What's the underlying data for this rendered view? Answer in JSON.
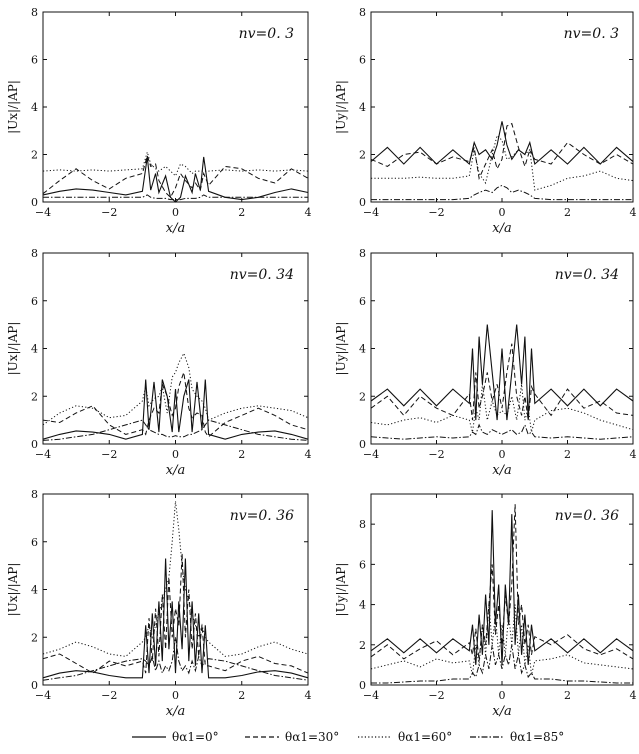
{
  "figure": {
    "legend": {
      "placement": "bottom-center",
      "items": [
        {
          "label": "θα1=0°",
          "dash": "solid"
        },
        {
          "label": "θα1=30°",
          "dash": "dashed"
        },
        {
          "label": "θα1=60°",
          "dash": "dotted"
        },
        {
          "label": "θα1=85°",
          "dash": "dashdot"
        }
      ]
    }
  },
  "chart_data": [
    {
      "type": "line",
      "panel": "a",
      "annotation": "nv=0. 3",
      "xlabel": "x/a",
      "ylabel": "|Ux|/|AP|",
      "xlim": [
        -4,
        4
      ],
      "ylim": [
        0,
        8
      ],
      "xticks": [
        "-4",
        "-2",
        "0",
        "2",
        "4"
      ],
      "yticks": [
        "0",
        "2",
        "4",
        "6",
        "8"
      ],
      "x": [
        -4,
        -3.5,
        -3,
        -2.5,
        -2,
        -1.5,
        -1,
        -0.85,
        -0.75,
        -0.6,
        -0.5,
        -0.3,
        -0.15,
        0,
        0.15,
        0.3,
        0.5,
        0.6,
        0.75,
        0.85,
        1,
        1.5,
        2,
        2.5,
        3,
        3.5,
        4
      ],
      "series": [
        {
          "label": "θα1=0°",
          "values": [
            0.3,
            0.45,
            0.55,
            0.5,
            0.4,
            0.3,
            0.45,
            1.9,
            0.5,
            1.2,
            0.4,
            1.1,
            0.2,
            0.0,
            0.2,
            1.1,
            0.4,
            1.2,
            0.5,
            1.9,
            0.45,
            0.2,
            0.1,
            0.2,
            0.4,
            0.55,
            0.4
          ]
        },
        {
          "label": "θα1=30°",
          "values": [
            0.35,
            0.9,
            1.4,
            0.9,
            0.55,
            1.0,
            1.2,
            1.95,
            1.5,
            1.6,
            0.9,
            0.4,
            0.2,
            0.6,
            1.2,
            0.9,
            0.6,
            0.8,
            0.5,
            1.2,
            0.7,
            1.5,
            1.4,
            1.0,
            0.8,
            1.4,
            1.0
          ]
        },
        {
          "label": "θα1=60°",
          "values": [
            1.3,
            1.35,
            1.3,
            1.35,
            1.3,
            1.35,
            1.4,
            2.1,
            1.6,
            1.4,
            1.3,
            1.5,
            1.3,
            1.1,
            1.6,
            1.5,
            1.2,
            1.3,
            1.3,
            1.3,
            1.3,
            1.35,
            1.3,
            1.35,
            1.3,
            1.35,
            1.3
          ]
        },
        {
          "label": "θα1=85°",
          "values": [
            0.2,
            0.2,
            0.2,
            0.2,
            0.2,
            0.2,
            0.2,
            0.3,
            0.2,
            0.15,
            0.15,
            0.15,
            0.1,
            0.1,
            0.1,
            0.15,
            0.15,
            0.15,
            0.2,
            0.3,
            0.2,
            0.2,
            0.2,
            0.2,
            0.2,
            0.2,
            0.2
          ]
        }
      ]
    },
    {
      "type": "line",
      "panel": "b",
      "annotation": "nv=0. 3",
      "xlabel": "x/a",
      "ylabel": "|Uy|/|AP|",
      "xlim": [
        -4,
        4
      ],
      "ylim": [
        0,
        8
      ],
      "xticks": [
        "-4",
        "-2",
        "0",
        "2",
        "4"
      ],
      "yticks": [
        "0",
        "2",
        "4",
        "6",
        "8"
      ],
      "x": [
        -4,
        -3.5,
        -3,
        -2.5,
        -2,
        -1.5,
        -1,
        -0.85,
        -0.7,
        -0.5,
        -0.3,
        -0.15,
        0,
        0.15,
        0.3,
        0.5,
        0.7,
        0.85,
        1,
        1.5,
        2,
        2.5,
        3,
        3.5,
        4
      ],
      "series": [
        {
          "label": "θα1=0°",
          "values": [
            1.7,
            2.3,
            1.6,
            2.3,
            1.6,
            2.2,
            1.6,
            2.5,
            2.0,
            2.2,
            1.8,
            2.4,
            3.4,
            2.4,
            1.8,
            2.2,
            2.0,
            2.5,
            1.6,
            2.2,
            1.6,
            2.3,
            1.6,
            2.3,
            1.7
          ]
        },
        {
          "label": "θα1=30°",
          "values": [
            1.8,
            1.5,
            2.0,
            2.1,
            1.6,
            1.9,
            1.7,
            2.3,
            1.0,
            1.6,
            2.2,
            1.4,
            1.8,
            3.2,
            3.3,
            2.3,
            1.5,
            2.2,
            1.8,
            1.6,
            2.5,
            2.0,
            1.6,
            2.0,
            1.6
          ]
        },
        {
          "label": "θα1=60°",
          "values": [
            1.0,
            1.0,
            1.0,
            1.05,
            1.0,
            1.0,
            1.1,
            2.2,
            1.2,
            0.8,
            2.0,
            2.8,
            2.6,
            1.8,
            1.9,
            2.2,
            2.0,
            2.2,
            0.5,
            0.7,
            1.0,
            1.1,
            1.3,
            1.0,
            0.9
          ]
        },
        {
          "label": "θα1=85°",
          "values": [
            0.1,
            0.1,
            0.1,
            0.1,
            0.1,
            0.1,
            0.15,
            0.3,
            0.4,
            0.5,
            0.4,
            0.6,
            0.7,
            0.6,
            0.4,
            0.5,
            0.4,
            0.3,
            0.15,
            0.1,
            0.1,
            0.1,
            0.1,
            0.1,
            0.1
          ]
        }
      ]
    },
    {
      "type": "line",
      "panel": "c",
      "annotation": "nv=0. 34",
      "xlabel": "x/a",
      "ylabel": "|Ux|/|AP|",
      "xlim": [
        -4,
        4
      ],
      "ylim": [
        0,
        8
      ],
      "xticks": [
        "-4",
        "-2",
        "0",
        "2",
        "4"
      ],
      "yticks": [
        "0",
        "2",
        "4",
        "6",
        "8"
      ],
      "x": [
        -4,
        -3.5,
        -3,
        -2.5,
        -2,
        -1.5,
        -1,
        -0.9,
        -0.8,
        -0.65,
        -0.5,
        -0.4,
        -0.25,
        -0.1,
        0,
        0.1,
        0.25,
        0.4,
        0.5,
        0.65,
        0.8,
        0.9,
        1,
        1.5,
        2,
        2.5,
        3,
        3.5,
        4
      ],
      "series": [
        {
          "label": "θα1=0°",
          "values": [
            0.2,
            0.4,
            0.55,
            0.5,
            0.4,
            0.2,
            0.4,
            2.7,
            0.6,
            2.6,
            0.5,
            2.7,
            2.0,
            0.5,
            2.3,
            0.5,
            2.0,
            2.7,
            0.5,
            2.6,
            0.6,
            2.7,
            0.4,
            0.2,
            0.4,
            0.5,
            0.55,
            0.4,
            0.2
          ]
        },
        {
          "label": "θα1=30°",
          "values": [
            1.0,
            0.9,
            1.3,
            1.6,
            0.8,
            0.4,
            0.6,
            0.4,
            1.0,
            1.5,
            1.3,
            2.5,
            2.0,
            1.2,
            1.5,
            2.4,
            3.0,
            1.5,
            1.1,
            1.3,
            1.2,
            0.5,
            0.3,
            0.9,
            1.2,
            1.5,
            1.2,
            0.8,
            0.6
          ]
        },
        {
          "label": "θα1=60°",
          "values": [
            0.8,
            1.3,
            1.6,
            1.5,
            1.1,
            1.2,
            1.8,
            2.4,
            1.6,
            1.9,
            2.0,
            2.4,
            1.3,
            2.8,
            3.0,
            3.4,
            3.8,
            3.2,
            2.3,
            2.0,
            1.8,
            1.5,
            1.0,
            1.3,
            1.5,
            1.6,
            1.5,
            1.4,
            1.1
          ]
        },
        {
          "label": "θα1=85°",
          "values": [
            0.15,
            0.2,
            0.3,
            0.4,
            0.6,
            0.8,
            1.0,
            0.8,
            0.6,
            0.5,
            0.4,
            0.4,
            0.3,
            0.3,
            0.35,
            0.3,
            0.3,
            0.4,
            0.4,
            0.5,
            0.6,
            0.8,
            1.0,
            0.8,
            0.6,
            0.4,
            0.3,
            0.2,
            0.15
          ]
        }
      ]
    },
    {
      "type": "line",
      "panel": "d",
      "annotation": "nv=0. 34",
      "xlabel": "x/a",
      "ylabel": "|Uy|/|AP|",
      "xlim": [
        -4,
        4
      ],
      "ylim": [
        0,
        8
      ],
      "xticks": [
        "-4",
        "-2",
        "0",
        "2",
        "4"
      ],
      "yticks": [
        "0",
        "2",
        "4",
        "6",
        "8"
      ],
      "x": [
        -4,
        -3.5,
        -3,
        -2.5,
        -2,
        -1.5,
        -1,
        -0.9,
        -0.8,
        -0.7,
        -0.6,
        -0.45,
        -0.3,
        -0.15,
        0,
        0.15,
        0.3,
        0.45,
        0.6,
        0.7,
        0.8,
        0.9,
        1,
        1.5,
        2,
        2.5,
        3,
        3.5,
        4
      ],
      "series": [
        {
          "label": "θα1=0°",
          "values": [
            1.8,
            2.3,
            1.6,
            2.3,
            1.6,
            2.3,
            1.7,
            4.0,
            1.0,
            4.5,
            2.5,
            5.0,
            3.0,
            1.0,
            4.0,
            1.0,
            3.0,
            5.0,
            2.5,
            4.5,
            1.0,
            4.0,
            1.7,
            2.3,
            1.6,
            2.3,
            1.6,
            2.3,
            1.8
          ]
        },
        {
          "label": "θα1=30°",
          "values": [
            1.5,
            2.0,
            1.2,
            2.0,
            1.5,
            1.2,
            2.1,
            1.0,
            3.0,
            1.5,
            2.0,
            3.0,
            1.8,
            2.5,
            1.5,
            3.0,
            4.2,
            2.0,
            1.2,
            2.0,
            1.0,
            2.4,
            2.1,
            1.2,
            2.3,
            1.5,
            1.8,
            1.3,
            1.2
          ]
        },
        {
          "label": "θα1=60°",
          "values": [
            0.9,
            0.8,
            1.0,
            1.1,
            0.9,
            1.2,
            1.0,
            0.5,
            1.5,
            1.0,
            2.5,
            1.0,
            1.8,
            1.2,
            1.4,
            1.2,
            2.0,
            1.0,
            2.5,
            1.0,
            1.5,
            0.5,
            1.0,
            1.4,
            1.5,
            1.3,
            1.0,
            0.8,
            0.6
          ]
        },
        {
          "label": "θα1=85°",
          "values": [
            0.3,
            0.25,
            0.2,
            0.25,
            0.3,
            0.25,
            0.3,
            0.5,
            0.4,
            0.8,
            0.5,
            0.4,
            0.6,
            0.5,
            0.4,
            0.5,
            0.6,
            0.4,
            0.5,
            0.8,
            0.4,
            0.5,
            0.3,
            0.25,
            0.3,
            0.25,
            0.2,
            0.25,
            0.3
          ]
        }
      ]
    },
    {
      "type": "line",
      "panel": "e",
      "annotation": "nv=0. 36",
      "xlabel": "x/a",
      "ylabel": "|Ux|/|AP|",
      "xlim": [
        -4,
        4
      ],
      "ylim": [
        0,
        8
      ],
      "xticks": [
        "-4",
        "-2",
        "0",
        "2",
        "4"
      ],
      "yticks": [
        "0",
        "2",
        "4",
        "6",
        "8"
      ],
      "x": [
        -4,
        -3.5,
        -3,
        -2.5,
        -2,
        -1.5,
        -1,
        -0.9,
        -0.8,
        -0.7,
        -0.6,
        -0.5,
        -0.4,
        -0.3,
        -0.2,
        -0.1,
        0,
        0.1,
        0.2,
        0.3,
        0.4,
        0.5,
        0.6,
        0.7,
        0.8,
        0.9,
        1,
        1.5,
        2,
        2.5,
        3,
        3.5,
        4
      ],
      "series": [
        {
          "label": "θα1=0°",
          "values": [
            0.3,
            0.5,
            0.6,
            0.55,
            0.4,
            0.3,
            0.3,
            2.5,
            0.5,
            3.0,
            0.8,
            3.5,
            1.0,
            5.3,
            1.5,
            3.5,
            0.5,
            3.5,
            1.5,
            5.3,
            1.0,
            3.5,
            0.8,
            3.0,
            0.5,
            2.5,
            0.3,
            0.3,
            0.4,
            0.55,
            0.6,
            0.5,
            0.3
          ]
        },
        {
          "label": "θα1=30°",
          "values": [
            1.1,
            1.3,
            0.9,
            0.5,
            1.0,
            0.8,
            1.0,
            0.5,
            2.8,
            1.0,
            3.2,
            1.2,
            3.8,
            1.5,
            4.5,
            2.0,
            3.2,
            2.5,
            5.5,
            2.0,
            4.0,
            1.5,
            3.0,
            1.2,
            2.5,
            0.8,
            0.8,
            0.6,
            1.0,
            1.2,
            0.9,
            0.8,
            0.5
          ]
        },
        {
          "label": "θα1=60°",
          "values": [
            1.3,
            1.5,
            1.8,
            1.6,
            1.3,
            1.2,
            1.8,
            2.0,
            2.5,
            2.0,
            2.5,
            3.0,
            3.5,
            4.0,
            4.5,
            6.0,
            7.7,
            6.5,
            5.0,
            4.0,
            3.5,
            3.0,
            2.5,
            2.0,
            2.5,
            2.0,
            1.8,
            1.2,
            1.3,
            1.6,
            1.8,
            1.5,
            1.3
          ]
        },
        {
          "label": "θα1=85°",
          "values": [
            0.2,
            0.3,
            0.4,
            0.6,
            0.8,
            1.0,
            1.1,
            1.0,
            0.8,
            1.2,
            0.6,
            1.0,
            0.5,
            0.8,
            0.6,
            1.0,
            2.0,
            1.0,
            0.6,
            0.8,
            0.5,
            1.0,
            0.6,
            1.2,
            0.8,
            1.0,
            1.1,
            1.0,
            0.8,
            0.6,
            0.4,
            0.3,
            0.2
          ]
        }
      ]
    },
    {
      "type": "line",
      "panel": "f",
      "annotation": "nv=0. 36",
      "xlabel": "x/a",
      "ylabel": "|Uy|/|AP|",
      "xlim": [
        -4,
        4
      ],
      "ylim": [
        0,
        9.5
      ],
      "xticks": [
        "-4",
        "-2",
        "0",
        "2",
        "4"
      ],
      "yticks": [
        "0",
        "2",
        "4",
        "6",
        "8"
      ],
      "x": [
        -4,
        -3.5,
        -3,
        -2.5,
        -2,
        -1.5,
        -1,
        -0.9,
        -0.8,
        -0.7,
        -0.6,
        -0.5,
        -0.4,
        -0.3,
        -0.2,
        -0.1,
        0,
        0.1,
        0.2,
        0.3,
        0.4,
        0.5,
        0.6,
        0.7,
        0.8,
        0.9,
        1,
        1.5,
        2,
        2.5,
        3,
        3.5,
        4
      ],
      "series": [
        {
          "label": "θα1=0°",
          "values": [
            1.7,
            2.3,
            1.6,
            2.3,
            1.6,
            2.3,
            1.7,
            3.0,
            1.0,
            3.5,
            1.5,
            4.5,
            2.0,
            8.7,
            3.0,
            5.0,
            1.0,
            5.0,
            3.0,
            8.5,
            2.0,
            4.5,
            1.5,
            3.5,
            1.0,
            3.0,
            1.7,
            2.3,
            1.6,
            2.3,
            1.6,
            2.3,
            1.7
          ]
        },
        {
          "label": "θα1=30°",
          "values": [
            1.4,
            2.0,
            1.3,
            1.8,
            2.2,
            1.5,
            2.1,
            1.5,
            2.8,
            1.2,
            3.0,
            2.0,
            4.0,
            6.0,
            2.5,
            4.0,
            2.0,
            4.5,
            3.0,
            5.0,
            9.0,
            3.0,
            4.0,
            2.0,
            3.0,
            1.5,
            2.4,
            2.0,
            2.5,
            1.8,
            1.5,
            1.8,
            1.3
          ]
        },
        {
          "label": "θα1=60°",
          "values": [
            0.8,
            1.0,
            1.2,
            0.9,
            1.3,
            1.1,
            1.2,
            0.5,
            2.0,
            1.0,
            3.0,
            1.5,
            4.0,
            2.0,
            3.5,
            1.5,
            3.0,
            1.5,
            3.5,
            2.0,
            4.0,
            1.5,
            3.0,
            1.0,
            2.0,
            0.5,
            1.2,
            1.3,
            1.5,
            1.1,
            1.0,
            0.9,
            0.8
          ]
        },
        {
          "label": "θα1=85°",
          "values": [
            0.1,
            0.1,
            0.15,
            0.2,
            0.2,
            0.3,
            0.3,
            0.6,
            0.4,
            1.0,
            0.6,
            1.5,
            0.8,
            2.0,
            1.0,
            1.5,
            0.8,
            1.5,
            1.0,
            2.0,
            0.8,
            1.5,
            0.6,
            1.0,
            0.4,
            0.6,
            0.3,
            0.3,
            0.2,
            0.2,
            0.15,
            0.1,
            0.1
          ]
        }
      ]
    }
  ]
}
